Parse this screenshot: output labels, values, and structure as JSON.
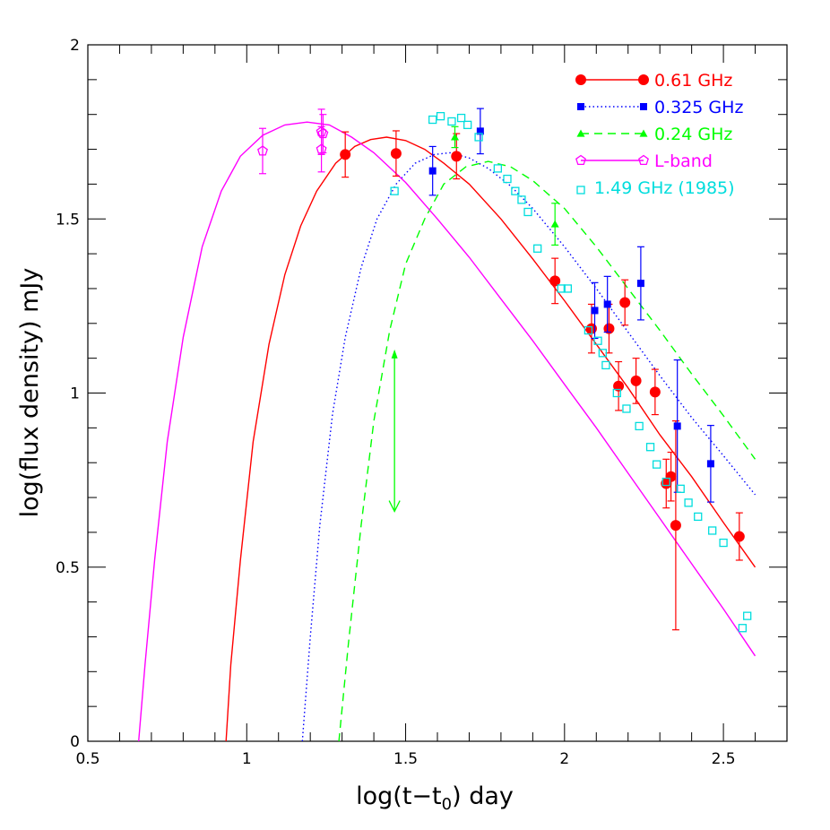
{
  "chart_data": {
    "type": "scatter",
    "xlabel": "log(t−t",
    "xlabel_sub": "0",
    "xlabel_suffix": ") day",
    "ylabel": "log(flux density) mJy",
    "xlim": [
      0.5,
      2.7
    ],
    "ylim": [
      0,
      2
    ],
    "x_major_ticks": [
      0.5,
      1,
      1.5,
      2,
      2.5
    ],
    "x_tick_labels": [
      "0.5",
      "1",
      "1.5",
      "2",
      "2.5"
    ],
    "x_minor_step": 0.1,
    "y_major_ticks": [
      0,
      0.5,
      1,
      1.5,
      2
    ],
    "y_tick_labels": [
      "0",
      "0.5",
      "1",
      "1.5",
      "2"
    ],
    "y_minor_step": 0.1,
    "grid": false,
    "legend_position": "top-right",
    "series": [
      {
        "name": "0.61 GHz",
        "color": "#ff0000",
        "marker": "circle",
        "line": "solid",
        "points": [
          {
            "x": 1.31,
            "y": 1.685,
            "err": 0.065
          },
          {
            "x": 1.47,
            "y": 1.688,
            "err": 0.065
          },
          {
            "x": 1.66,
            "y": 1.68,
            "err": 0.065
          },
          {
            "x": 1.97,
            "y": 1.322,
            "err": 0.065
          },
          {
            "x": 2.085,
            "y": 1.185,
            "err": 0.07
          },
          {
            "x": 2.14,
            "y": 1.185,
            "err": 0.07
          },
          {
            "x": 2.19,
            "y": 1.26,
            "err": 0.065
          },
          {
            "x": 2.17,
            "y": 1.02,
            "err": 0.07
          },
          {
            "x": 2.225,
            "y": 1.035,
            "err": 0.065
          },
          {
            "x": 2.285,
            "y": 1.003,
            "err": 0.065
          },
          {
            "x": 2.32,
            "y": 0.74,
            "err": 0.07
          },
          {
            "x": 2.335,
            "y": 0.76,
            "err": 0.07
          },
          {
            "x": 2.35,
            "y": 0.62,
            "err": 0.3
          },
          {
            "x": 2.55,
            "y": 0.588,
            "err": 0.068
          }
        ],
        "model": [
          [
            0.935,
            0.0
          ],
          [
            0.95,
            0.22
          ],
          [
            0.98,
            0.52
          ],
          [
            1.02,
            0.86
          ],
          [
            1.07,
            1.14
          ],
          [
            1.12,
            1.34
          ],
          [
            1.17,
            1.48
          ],
          [
            1.22,
            1.58
          ],
          [
            1.28,
            1.66
          ],
          [
            1.34,
            1.708
          ],
          [
            1.39,
            1.728
          ],
          [
            1.44,
            1.735
          ],
          [
            1.5,
            1.725
          ],
          [
            1.56,
            1.7
          ],
          [
            1.62,
            1.66
          ],
          [
            1.7,
            1.6
          ],
          [
            1.8,
            1.5
          ],
          [
            1.9,
            1.385
          ],
          [
            2.0,
            1.265
          ],
          [
            2.1,
            1.14
          ],
          [
            2.2,
            1.015
          ],
          [
            2.3,
            0.88
          ],
          [
            2.4,
            0.76
          ],
          [
            2.5,
            0.628
          ],
          [
            2.6,
            0.5
          ]
        ]
      },
      {
        "name": "0.325 GHz",
        "color": "#0000ff",
        "marker": "square",
        "line": "dotted",
        "points": [
          {
            "x": 1.585,
            "y": 1.638,
            "err": 0.07
          },
          {
            "x": 1.735,
            "y": 1.752,
            "err": 0.065
          },
          {
            "x": 2.095,
            "y": 1.237,
            "err": 0.08
          },
          {
            "x": 2.135,
            "y": 1.255,
            "err": 0.08
          },
          {
            "x": 2.24,
            "y": 1.315,
            "err": 0.105
          },
          {
            "x": 2.355,
            "y": 0.905,
            "err": 0.19
          },
          {
            "x": 2.46,
            "y": 0.797,
            "err": 0.11
          }
        ],
        "model": [
          [
            1.175,
            0.0
          ],
          [
            1.2,
            0.3
          ],
          [
            1.23,
            0.62
          ],
          [
            1.27,
            0.94
          ],
          [
            1.31,
            1.16
          ],
          [
            1.36,
            1.36
          ],
          [
            1.41,
            1.5
          ],
          [
            1.47,
            1.6
          ],
          [
            1.53,
            1.66
          ],
          [
            1.59,
            1.685
          ],
          [
            1.64,
            1.69
          ],
          [
            1.7,
            1.675
          ],
          [
            1.76,
            1.645
          ],
          [
            1.83,
            1.595
          ],
          [
            1.9,
            1.53
          ],
          [
            2.0,
            1.42
          ],
          [
            2.1,
            1.3
          ],
          [
            2.2,
            1.175
          ],
          [
            2.3,
            1.05
          ],
          [
            2.4,
            0.93
          ],
          [
            2.5,
            0.82
          ],
          [
            2.6,
            0.708
          ]
        ]
      },
      {
        "name": "0.24 GHz",
        "color": "#00ff00",
        "marker": "triangle",
        "line": "dashed",
        "points": [
          {
            "x": 1.655,
            "y": 1.735,
            "err": 0.03
          },
          {
            "x": 1.97,
            "y": 1.485,
            "err": 0.06
          }
        ],
        "upper_limit": {
          "x": 1.465,
          "y_top": 1.12,
          "y_bottom": 0.66
        },
        "model": [
          [
            1.29,
            0.0
          ],
          [
            1.32,
            0.28
          ],
          [
            1.36,
            0.62
          ],
          [
            1.4,
            0.92
          ],
          [
            1.45,
            1.18
          ],
          [
            1.5,
            1.37
          ],
          [
            1.56,
            1.5
          ],
          [
            1.62,
            1.6
          ],
          [
            1.69,
            1.65
          ],
          [
            1.76,
            1.665
          ],
          [
            1.83,
            1.65
          ],
          [
            1.9,
            1.61
          ],
          [
            2.0,
            1.53
          ],
          [
            2.1,
            1.42
          ],
          [
            2.2,
            1.3
          ],
          [
            2.3,
            1.18
          ],
          [
            2.4,
            1.055
          ],
          [
            2.5,
            0.935
          ],
          [
            2.6,
            0.81
          ]
        ]
      },
      {
        "name": "L-band",
        "color": "#ff00ff",
        "marker": "pentagon",
        "line": "solid",
        "points": [
          {
            "x": 1.05,
            "y": 1.695,
            "err": 0.065
          },
          {
            "x": 1.235,
            "y": 1.75,
            "err": 0.065
          },
          {
            "x": 1.24,
            "y": 1.745,
            "err": 0.055
          },
          {
            "x": 1.235,
            "y": 1.7,
            "err": 0.065
          }
        ],
        "model": [
          [
            0.66,
            0.0
          ],
          [
            0.68,
            0.22
          ],
          [
            0.71,
            0.52
          ],
          [
            0.75,
            0.86
          ],
          [
            0.8,
            1.16
          ],
          [
            0.86,
            1.42
          ],
          [
            0.92,
            1.58
          ],
          [
            0.98,
            1.68
          ],
          [
            1.05,
            1.74
          ],
          [
            1.12,
            1.77
          ],
          [
            1.19,
            1.778
          ],
          [
            1.26,
            1.77
          ],
          [
            1.33,
            1.735
          ],
          [
            1.4,
            1.69
          ],
          [
            1.5,
            1.605
          ],
          [
            1.6,
            1.5
          ],
          [
            1.7,
            1.39
          ],
          [
            1.8,
            1.27
          ],
          [
            1.9,
            1.15
          ],
          [
            2.0,
            1.025
          ],
          [
            2.1,
            0.9
          ],
          [
            2.2,
            0.77
          ],
          [
            2.3,
            0.64
          ],
          [
            2.4,
            0.51
          ],
          [
            2.5,
            0.38
          ],
          [
            2.6,
            0.245
          ]
        ]
      },
      {
        "name": "1.49 GHz (1985)",
        "color": "#00dddd",
        "marker": "open-square",
        "line": "none",
        "points": [
          {
            "x": 1.465,
            "y": 1.58
          },
          {
            "x": 1.585,
            "y": 1.785
          },
          {
            "x": 1.61,
            "y": 1.795
          },
          {
            "x": 1.645,
            "y": 1.78
          },
          {
            "x": 1.675,
            "y": 1.79
          },
          {
            "x": 1.695,
            "y": 1.77
          },
          {
            "x": 1.73,
            "y": 1.735
          },
          {
            "x": 1.79,
            "y": 1.645
          },
          {
            "x": 1.82,
            "y": 1.615
          },
          {
            "x": 1.845,
            "y": 1.58
          },
          {
            "x": 1.865,
            "y": 1.555
          },
          {
            "x": 1.885,
            "y": 1.52
          },
          {
            "x": 1.915,
            "y": 1.415
          },
          {
            "x": 1.99,
            "y": 1.3
          },
          {
            "x": 2.01,
            "y": 1.3
          },
          {
            "x": 2.075,
            "y": 1.18
          },
          {
            "x": 2.105,
            "y": 1.15
          },
          {
            "x": 2.12,
            "y": 1.115
          },
          {
            "x": 2.13,
            "y": 1.08
          },
          {
            "x": 2.165,
            "y": 1.0
          },
          {
            "x": 2.195,
            "y": 0.955
          },
          {
            "x": 2.235,
            "y": 0.905
          },
          {
            "x": 2.27,
            "y": 0.845
          },
          {
            "x": 2.29,
            "y": 0.795
          },
          {
            "x": 2.32,
            "y": 0.745
          },
          {
            "x": 2.365,
            "y": 0.725
          },
          {
            "x": 2.39,
            "y": 0.685
          },
          {
            "x": 2.42,
            "y": 0.645
          },
          {
            "x": 2.465,
            "y": 0.605
          },
          {
            "x": 2.5,
            "y": 0.57
          },
          {
            "x": 2.56,
            "y": 0.325
          },
          {
            "x": 2.575,
            "y": 0.36
          }
        ]
      }
    ]
  }
}
